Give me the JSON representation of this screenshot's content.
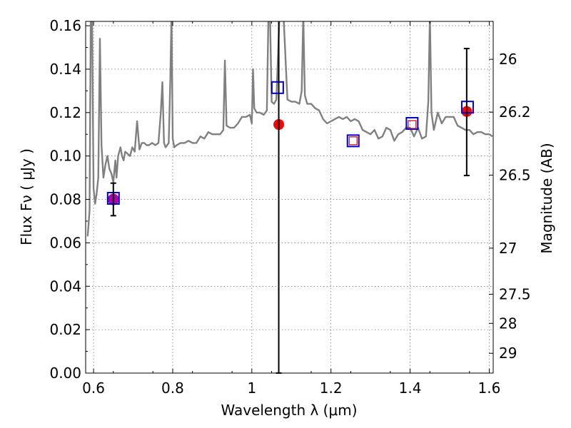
{
  "chart_data": {
    "type": "scatter",
    "title": "",
    "xlabel": "Wavelength  λ (μm)",
    "ylabel": "Flux  Fν  ( μJy )",
    "y2label": "Magnitude (AB)",
    "xlim": [
      0.58,
      1.61
    ],
    "ylim": [
      0.0,
      0.162
    ],
    "xticks": [
      0.6,
      0.8,
      1.0,
      1.2,
      1.4,
      1.6
    ],
    "xtick_labels": [
      "0.6",
      "0.8",
      "1",
      "1.2",
      "1.4",
      "1.6"
    ],
    "yticks": [
      0.0,
      0.02,
      0.04,
      0.06,
      0.08,
      0.1,
      0.12,
      0.14,
      0.16
    ],
    "ytick_labels": [
      "0.00",
      "0.02",
      "0.04",
      "0.06",
      "0.08",
      "0.10",
      "0.12",
      "0.14",
      "0.16"
    ],
    "y2ticks": [
      26,
      26.2,
      26.5,
      27,
      27.5,
      28,
      29
    ],
    "y2tick_labels": [
      "26",
      "26.2",
      "26.5",
      "27",
      "27.5",
      "28",
      "29"
    ],
    "grid": true,
    "model_spectrum": {
      "color": "#808080",
      "x": [
        0.585,
        0.59,
        0.593,
        0.596,
        0.6,
        0.604,
        0.608,
        0.612,
        0.616,
        0.62,
        0.625,
        0.63,
        0.635,
        0.64,
        0.645,
        0.65,
        0.655,
        0.658,
        0.662,
        0.668,
        0.672,
        0.676,
        0.68,
        0.686,
        0.692,
        0.698,
        0.704,
        0.71,
        0.716,
        0.722,
        0.728,
        0.734,
        0.74,
        0.748,
        0.756,
        0.764,
        0.77,
        0.774,
        0.778,
        0.782,
        0.79,
        0.794,
        0.797,
        0.8,
        0.804,
        0.81,
        0.82,
        0.83,
        0.84,
        0.85,
        0.86,
        0.87,
        0.88,
        0.89,
        0.9,
        0.91,
        0.92,
        0.928,
        0.932,
        0.936,
        0.945,
        0.955,
        0.965,
        0.975,
        0.985,
        0.995,
        1.0,
        1.003,
        1.006,
        1.012,
        1.02,
        1.03,
        1.038,
        1.042,
        1.046,
        1.05,
        1.056,
        1.062,
        1.07,
        1.08,
        1.09,
        1.1,
        1.11,
        1.12,
        1.126,
        1.13,
        1.134,
        1.14,
        1.15,
        1.16,
        1.17,
        1.18,
        1.19,
        1.2,
        1.21,
        1.22,
        1.23,
        1.24,
        1.25,
        1.26,
        1.27,
        1.28,
        1.29,
        1.3,
        1.31,
        1.32,
        1.33,
        1.34,
        1.35,
        1.36,
        1.37,
        1.38,
        1.39,
        1.4,
        1.41,
        1.42,
        1.43,
        1.44,
        1.446,
        1.45,
        1.454,
        1.46,
        1.47,
        1.48,
        1.49,
        1.5,
        1.51,
        1.52,
        1.53,
        1.54,
        1.55,
        1.56,
        1.57,
        1.58,
        1.59,
        1.6,
        1.608
      ],
      "y": [
        0.063,
        0.075,
        0.165,
        0.165,
        0.085,
        0.078,
        0.083,
        0.09,
        0.154,
        0.105,
        0.09,
        0.096,
        0.1,
        0.094,
        0.092,
        0.088,
        0.098,
        0.09,
        0.1,
        0.104,
        0.1,
        0.098,
        0.102,
        0.101,
        0.1,
        0.104,
        0.102,
        0.116,
        0.103,
        0.106,
        0.106,
        0.105,
        0.105,
        0.106,
        0.105,
        0.106,
        0.12,
        0.134,
        0.106,
        0.104,
        0.106,
        0.135,
        0.165,
        0.108,
        0.104,
        0.105,
        0.106,
        0.106,
        0.107,
        0.106,
        0.106,
        0.109,
        0.108,
        0.111,
        0.11,
        0.11,
        0.11,
        0.112,
        0.144,
        0.114,
        0.113,
        0.113,
        0.115,
        0.118,
        0.118,
        0.119,
        0.115,
        0.14,
        0.122,
        0.12,
        0.12,
        0.119,
        0.121,
        0.165,
        0.165,
        0.125,
        0.124,
        0.126,
        0.165,
        0.165,
        0.126,
        0.125,
        0.125,
        0.124,
        0.13,
        0.165,
        0.128,
        0.124,
        0.124,
        0.122,
        0.121,
        0.117,
        0.115,
        0.116,
        0.117,
        0.118,
        0.117,
        0.118,
        0.116,
        0.117,
        0.116,
        0.112,
        0.111,
        0.11,
        0.112,
        0.108,
        0.109,
        0.113,
        0.112,
        0.107,
        0.11,
        0.111,
        0.113,
        0.113,
        0.109,
        0.113,
        0.108,
        0.109,
        0.125,
        0.165,
        0.12,
        0.112,
        0.12,
        0.115,
        0.118,
        0.118,
        0.118,
        0.114,
        0.113,
        0.112,
        0.112,
        0.11,
        0.111,
        0.111,
        0.11,
        0.11,
        0.109
      ]
    },
    "model_bands": {
      "color": "#0000cc",
      "x": [
        0.65,
        1.065,
        1.256,
        1.405,
        1.545
      ],
      "y": [
        0.0805,
        0.1315,
        0.107,
        0.115,
        0.1225
      ]
    },
    "synthetic_bands": {
      "color": "#cc0000",
      "x": [
        1.256,
        1.405
      ],
      "y": [
        0.107,
        0.1145
      ]
    },
    "observed": {
      "color": "#ff0000",
      "x": [
        1.068,
        1.543
      ],
      "y": [
        0.1145,
        0.1205
      ],
      "yerr_low": [
        0.1145,
        0.0295
      ],
      "yerr_high": [
        0.06,
        0.029
      ]
    },
    "observed_purple": {
      "color": "#aa00aa",
      "x": [
        0.65
      ],
      "y": [
        0.08
      ],
      "yerr_low": [
        0.0075
      ],
      "yerr_high": [
        0.0075
      ]
    }
  }
}
